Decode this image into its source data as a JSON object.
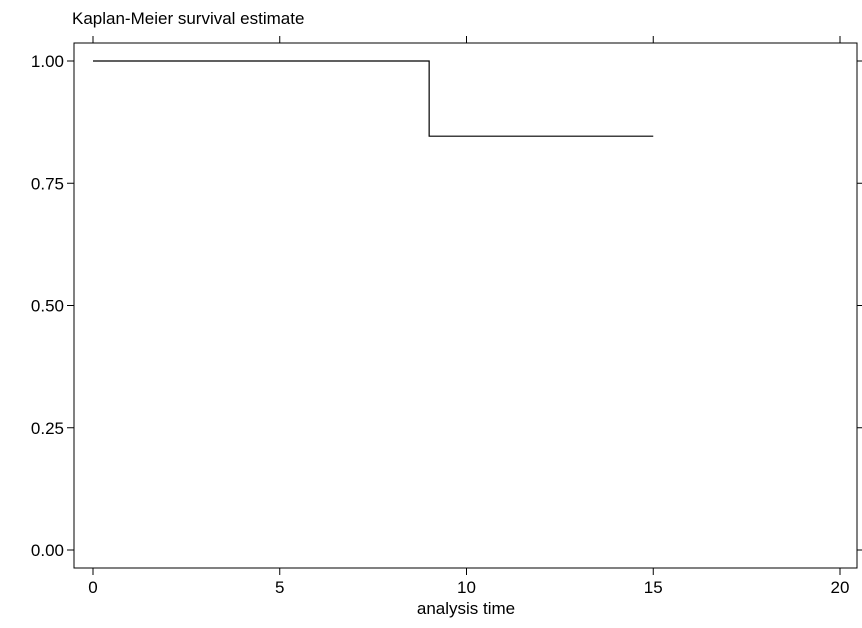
{
  "chart_data": {
    "type": "line",
    "step": true,
    "title": "Kaplan-Meier survival estimate",
    "xlabel": "analysis time",
    "ylabel": "",
    "xlim": [
      0,
      20
    ],
    "ylim": [
      0,
      1
    ],
    "x_ticks": [
      0,
      5,
      10,
      15,
      20
    ],
    "x_tick_labels": [
      "0",
      "5",
      "10",
      "15",
      "20"
    ],
    "y_ticks": [
      0,
      0.25,
      0.5,
      0.75,
      1
    ],
    "y_tick_labels": [
      "0.00",
      "0.25",
      "0.50",
      "0.75",
      "1.00"
    ],
    "grid": false,
    "legend": "none",
    "series": [
      {
        "x": [
          0,
          9,
          15
        ],
        "y": [
          1.0,
          0.8462,
          0.8462
        ]
      }
    ],
    "colors": {
      "line": "#000000",
      "axis": "#000000",
      "background": "#ffffff"
    }
  }
}
